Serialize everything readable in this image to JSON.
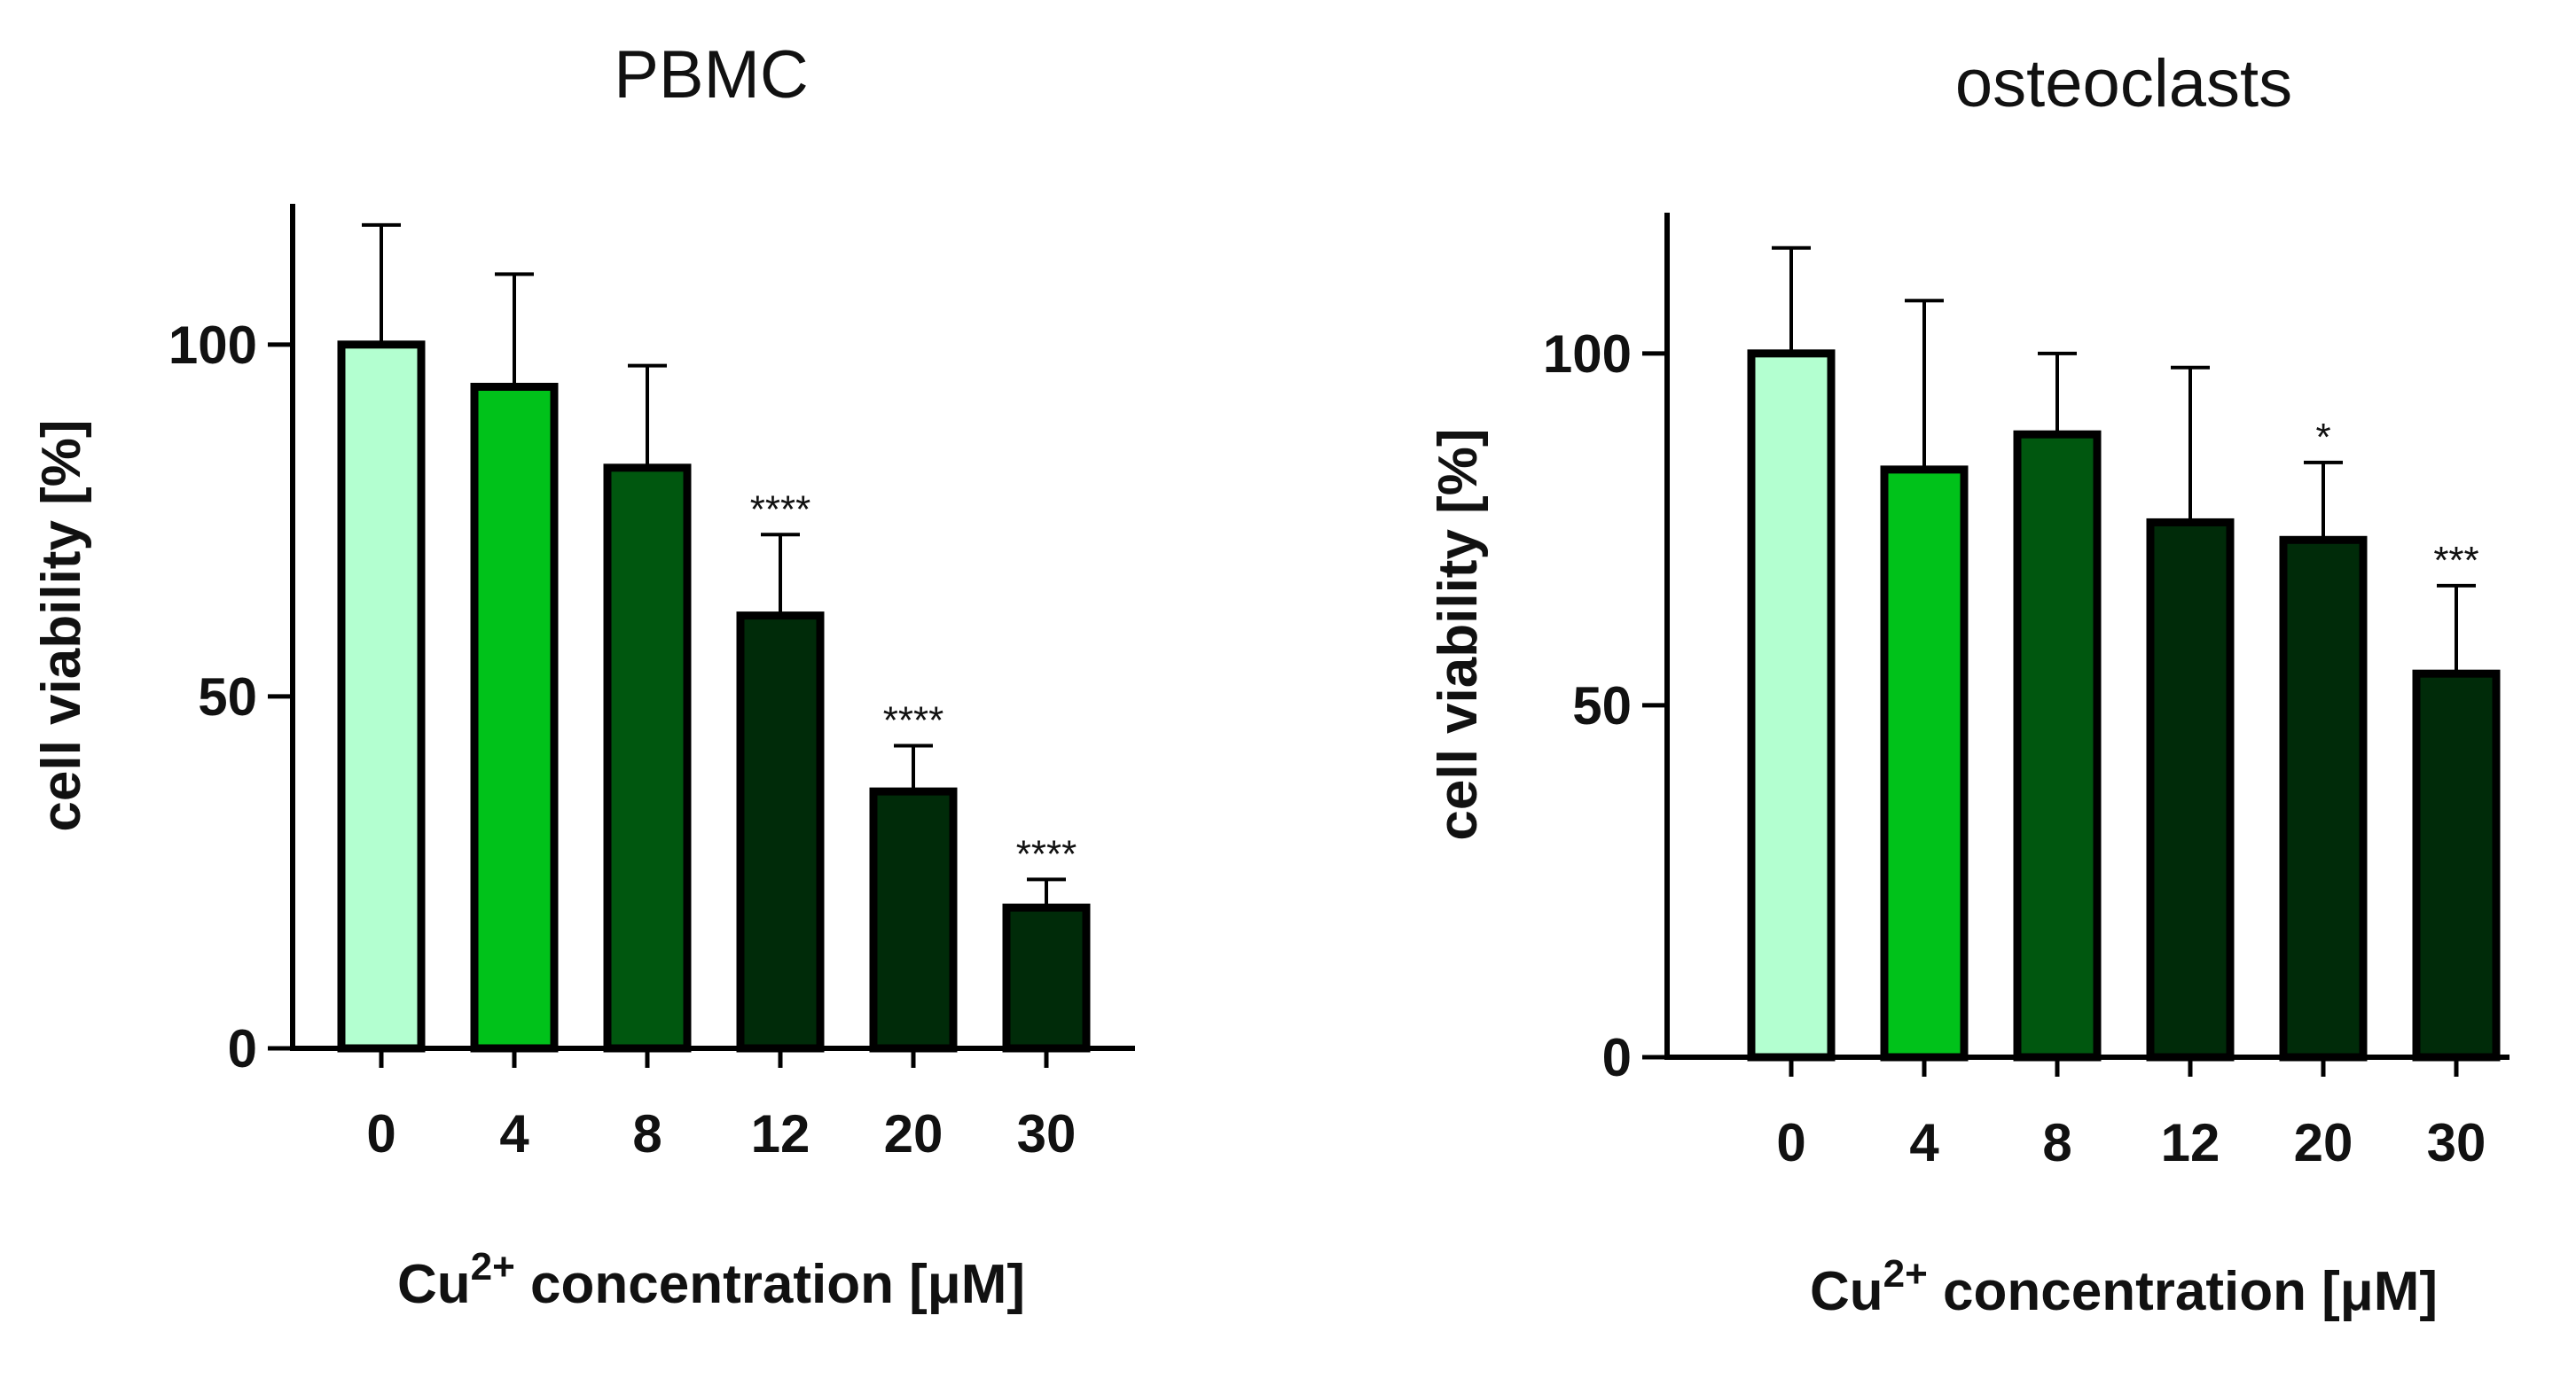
{
  "chart_data": [
    {
      "type": "bar",
      "title": "PBMC",
      "ylabel": "cell viability [%]",
      "xlabel_prefix": "Cu",
      "xlabel_superscript": "2+",
      "xlabel_suffix": " concentration [μM]",
      "categories": [
        "0",
        "4",
        "8",
        "12",
        "20",
        "30"
      ],
      "values": [
        100,
        94,
        82.5,
        61.5,
        36.5,
        20
      ],
      "error_upper": [
        117,
        110,
        97,
        73,
        43,
        24
      ],
      "significance": [
        "",
        "",
        "",
        "****",
        "****",
        "****"
      ],
      "ylim": [
        0,
        120
      ],
      "yticks": [
        0,
        50,
        100
      ],
      "colors": [
        "#b3ffd0",
        "#00c21a",
        "#00570f",
        "#002b09",
        "#002b09",
        "#002b09"
      ]
    },
    {
      "type": "bar",
      "title": "osteoclasts",
      "ylabel": "cell viability [%]",
      "xlabel_prefix": "Cu",
      "xlabel_superscript": "2+",
      "xlabel_suffix": " concentration [μM]",
      "categories": [
        "0",
        "4",
        "8",
        "12",
        "20",
        "30"
      ],
      "values": [
        100,
        83.5,
        88.5,
        76,
        73.5,
        54.5
      ],
      "error_upper": [
        115,
        107.5,
        100,
        98,
        84.5,
        67
      ],
      "significance": [
        "",
        "",
        "",
        "",
        "*",
        "***"
      ],
      "ylim": [
        0,
        120
      ],
      "yticks": [
        0,
        50,
        100
      ],
      "colors": [
        "#b3ffd0",
        "#00c21a",
        "#00570f",
        "#002b09",
        "#002b09",
        "#002b09"
      ]
    }
  ]
}
